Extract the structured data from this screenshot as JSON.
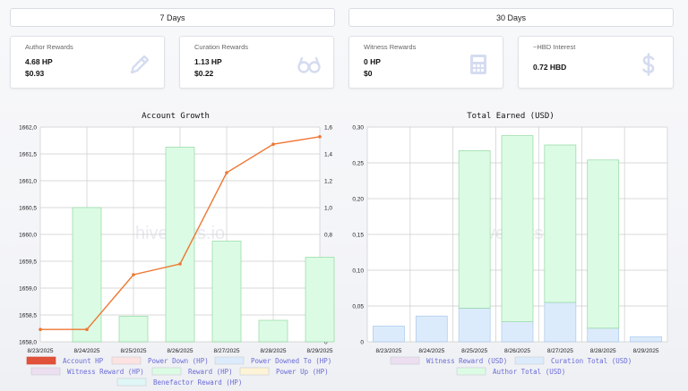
{
  "tabs": {
    "seven_days": "7 Days",
    "thirty_days": "30 Days"
  },
  "cards": [
    {
      "title": "Author Rewards",
      "line1": "4.68 HP",
      "line2": "$0.93",
      "icon": "pencil-icon"
    },
    {
      "title": "Curation Rewards",
      "line1": "1.13 HP",
      "line2": "$0.22",
      "icon": "glasses-icon"
    },
    {
      "title": "Witness Rewards",
      "line1": "0 HP",
      "line2": "$0",
      "icon": "calculator-icon"
    },
    {
      "title": "~HBD Interest",
      "line1": "0.72 HBD",
      "line2": "",
      "icon": "dollar-icon"
    }
  ],
  "colors": {
    "line": "#ee7733",
    "bar_fill": "#dcfbe4",
    "bar_stroke": "#8fd9a0",
    "grid": "#cccccc"
  },
  "watermark": "hivestats.io",
  "chart_data": [
    {
      "type": "bar",
      "title": "Account Growth",
      "categories": [
        "8/23/2025",
        "8/24/2025",
        "8/25/2025",
        "8/26/2025",
        "8/27/2025",
        "8/28/2025",
        "8/29/2025"
      ],
      "y_left": {
        "min": 1658.0,
        "max": 1662.0,
        "ticks": [
          "1658,0",
          "1658,5",
          "1659,0",
          "1659,5",
          "1660,0",
          "1660,5",
          "1661,0",
          "1661,5",
          "1662,0"
        ]
      },
      "y_right": {
        "min": 0,
        "max": 1.6,
        "ticks": [
          "0",
          "0,2",
          "0,4",
          "0,6",
          "0,8",
          "1,0",
          "1,2",
          "1,4",
          "1,6"
        ]
      },
      "series": [
        {
          "name": "Account HP",
          "type": "line",
          "axis": "left",
          "values": [
            1658.23,
            1658.23,
            1659.25,
            1659.45,
            1661.15,
            1661.68,
            1661.82
          ]
        },
        {
          "name": "Reward (HP)",
          "type": "bar",
          "axis": "right",
          "values": [
            0,
            1.0,
            0.19,
            1.45,
            0.75,
            0.16,
            0.63
          ]
        }
      ],
      "legend": [
        {
          "name": "Account HP",
          "color": "#e0533a",
          "text": "#6b6bd6"
        },
        {
          "name": "Power Down (HP)",
          "color": "#fde2e2",
          "text": "#6b6bd6"
        },
        {
          "name": "Power Downed To (HP)",
          "color": "#dcebfb",
          "text": "#6b6bd6"
        },
        {
          "name": "Witness Reward (HP)",
          "color": "#ecdff0",
          "text": "#6b6bd6"
        },
        {
          "name": "Reward (HP)",
          "color": "#dcfbe4",
          "text": "#6b6bd6"
        },
        {
          "name": "Power Up (HP)",
          "color": "#fdf3d6",
          "text": "#6b6bd6"
        },
        {
          "name": "Benefactor Reward (HP)",
          "color": "#dff6f6",
          "text": "#6b6bd6"
        }
      ]
    },
    {
      "type": "bar",
      "title": "Total Earned (USD)",
      "categories": [
        "8/23/2025",
        "8/24/2025",
        "8/25/2025",
        "8/26/2025",
        "8/27/2025",
        "8/28/2025",
        "8/29/2025"
      ],
      "y": {
        "min": 0,
        "max": 0.3,
        "ticks": [
          "0",
          "0,05",
          "0,10",
          "0,15",
          "0,20",
          "0,25",
          "0,30"
        ]
      },
      "series": [
        {
          "name": "Curation Total (USD)",
          "values": [
            0.022,
            0.036,
            0.047,
            0.028,
            0.055,
            0.019,
            0.007
          ]
        },
        {
          "name": "Author Total (USD)",
          "values": [
            0,
            0,
            0.22,
            0.26,
            0.22,
            0.235,
            0
          ]
        }
      ],
      "legend": [
        {
          "name": "Witness Reward (USD)",
          "color": "#ecdff0"
        },
        {
          "name": "Curation Total (USD)",
          "color": "#dcebfb"
        },
        {
          "name": "Author Total (USD)",
          "color": "#dcfbe4"
        }
      ]
    }
  ]
}
